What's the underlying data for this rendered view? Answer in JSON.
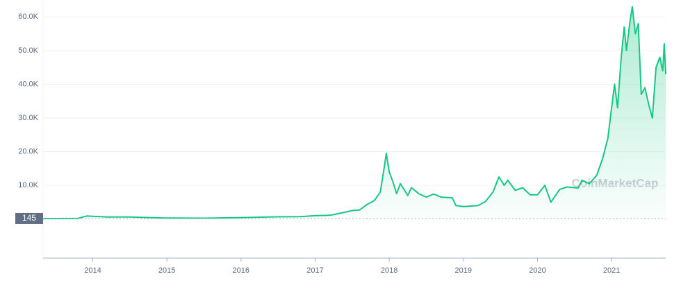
{
  "chart_data": {
    "type": "area",
    "color": "#16c784",
    "watermark": "CoinMarketCap",
    "reference_line": 145,
    "x": [
      2013.33,
      2013.8,
      2013.92,
      2014.0,
      2014.2,
      2014.5,
      2014.8,
      2015.0,
      2015.5,
      2016.0,
      2016.5,
      2016.8,
      2017.0,
      2017.2,
      2017.4,
      2017.5,
      2017.6,
      2017.7,
      2017.8,
      2017.88,
      2017.93,
      2017.96,
      2018.0,
      2018.05,
      2018.1,
      2018.15,
      2018.25,
      2018.3,
      2018.4,
      2018.5,
      2018.6,
      2018.7,
      2018.85,
      2018.9,
      2019.0,
      2019.2,
      2019.3,
      2019.4,
      2019.48,
      2019.55,
      2019.6,
      2019.7,
      2019.8,
      2019.9,
      2020.0,
      2020.1,
      2020.18,
      2020.3,
      2020.4,
      2020.55,
      2020.6,
      2020.7,
      2020.8,
      2020.88,
      2020.95,
      2021.0,
      2021.04,
      2021.08,
      2021.13,
      2021.17,
      2021.2,
      2021.25,
      2021.28,
      2021.32,
      2021.36,
      2021.4,
      2021.45,
      2021.5,
      2021.55,
      2021.6,
      2021.65,
      2021.69,
      2021.71,
      2021.73
    ],
    "values": [
      120,
      200,
      900,
      800,
      600,
      620,
      380,
      300,
      250,
      430,
      650,
      700,
      980,
      1100,
      2000,
      2500,
      2700,
      4300,
      5500,
      8000,
      15000,
      19500,
      14000,
      11000,
      7500,
      10500,
      7000,
      9300,
      7500,
      6500,
      7400,
      6500,
      6300,
      4000,
      3700,
      4000,
      5200,
      8000,
      12500,
      10000,
      11500,
      8500,
      9300,
      7200,
      7200,
      10000,
      5000,
      8800,
      9500,
      9200,
      11500,
      10500,
      13000,
      18000,
      24000,
      33000,
      40000,
      33000,
      48000,
      57000,
      50000,
      59000,
      63000,
      55000,
      58000,
      37000,
      39000,
      34000,
      30000,
      45000,
      48000,
      44000,
      52000,
      43000
    ],
    "xlim": [
      2013.33,
      2021.73
    ],
    "xticks": [
      2014,
      2015,
      2016,
      2017,
      2018,
      2019,
      2020,
      2021
    ],
    "ylim": [
      -11600,
      65000
    ],
    "yticks": [
      {
        "value": 10000,
        "label": "10.0K"
      },
      {
        "value": 20000,
        "label": "20.0K"
      },
      {
        "value": 30000,
        "label": "30.0K"
      },
      {
        "value": 40000,
        "label": "40.0K"
      },
      {
        "value": 50000,
        "label": "50.0K"
      },
      {
        "value": 60000,
        "label": "60.0K"
      }
    ],
    "grid": true
  }
}
